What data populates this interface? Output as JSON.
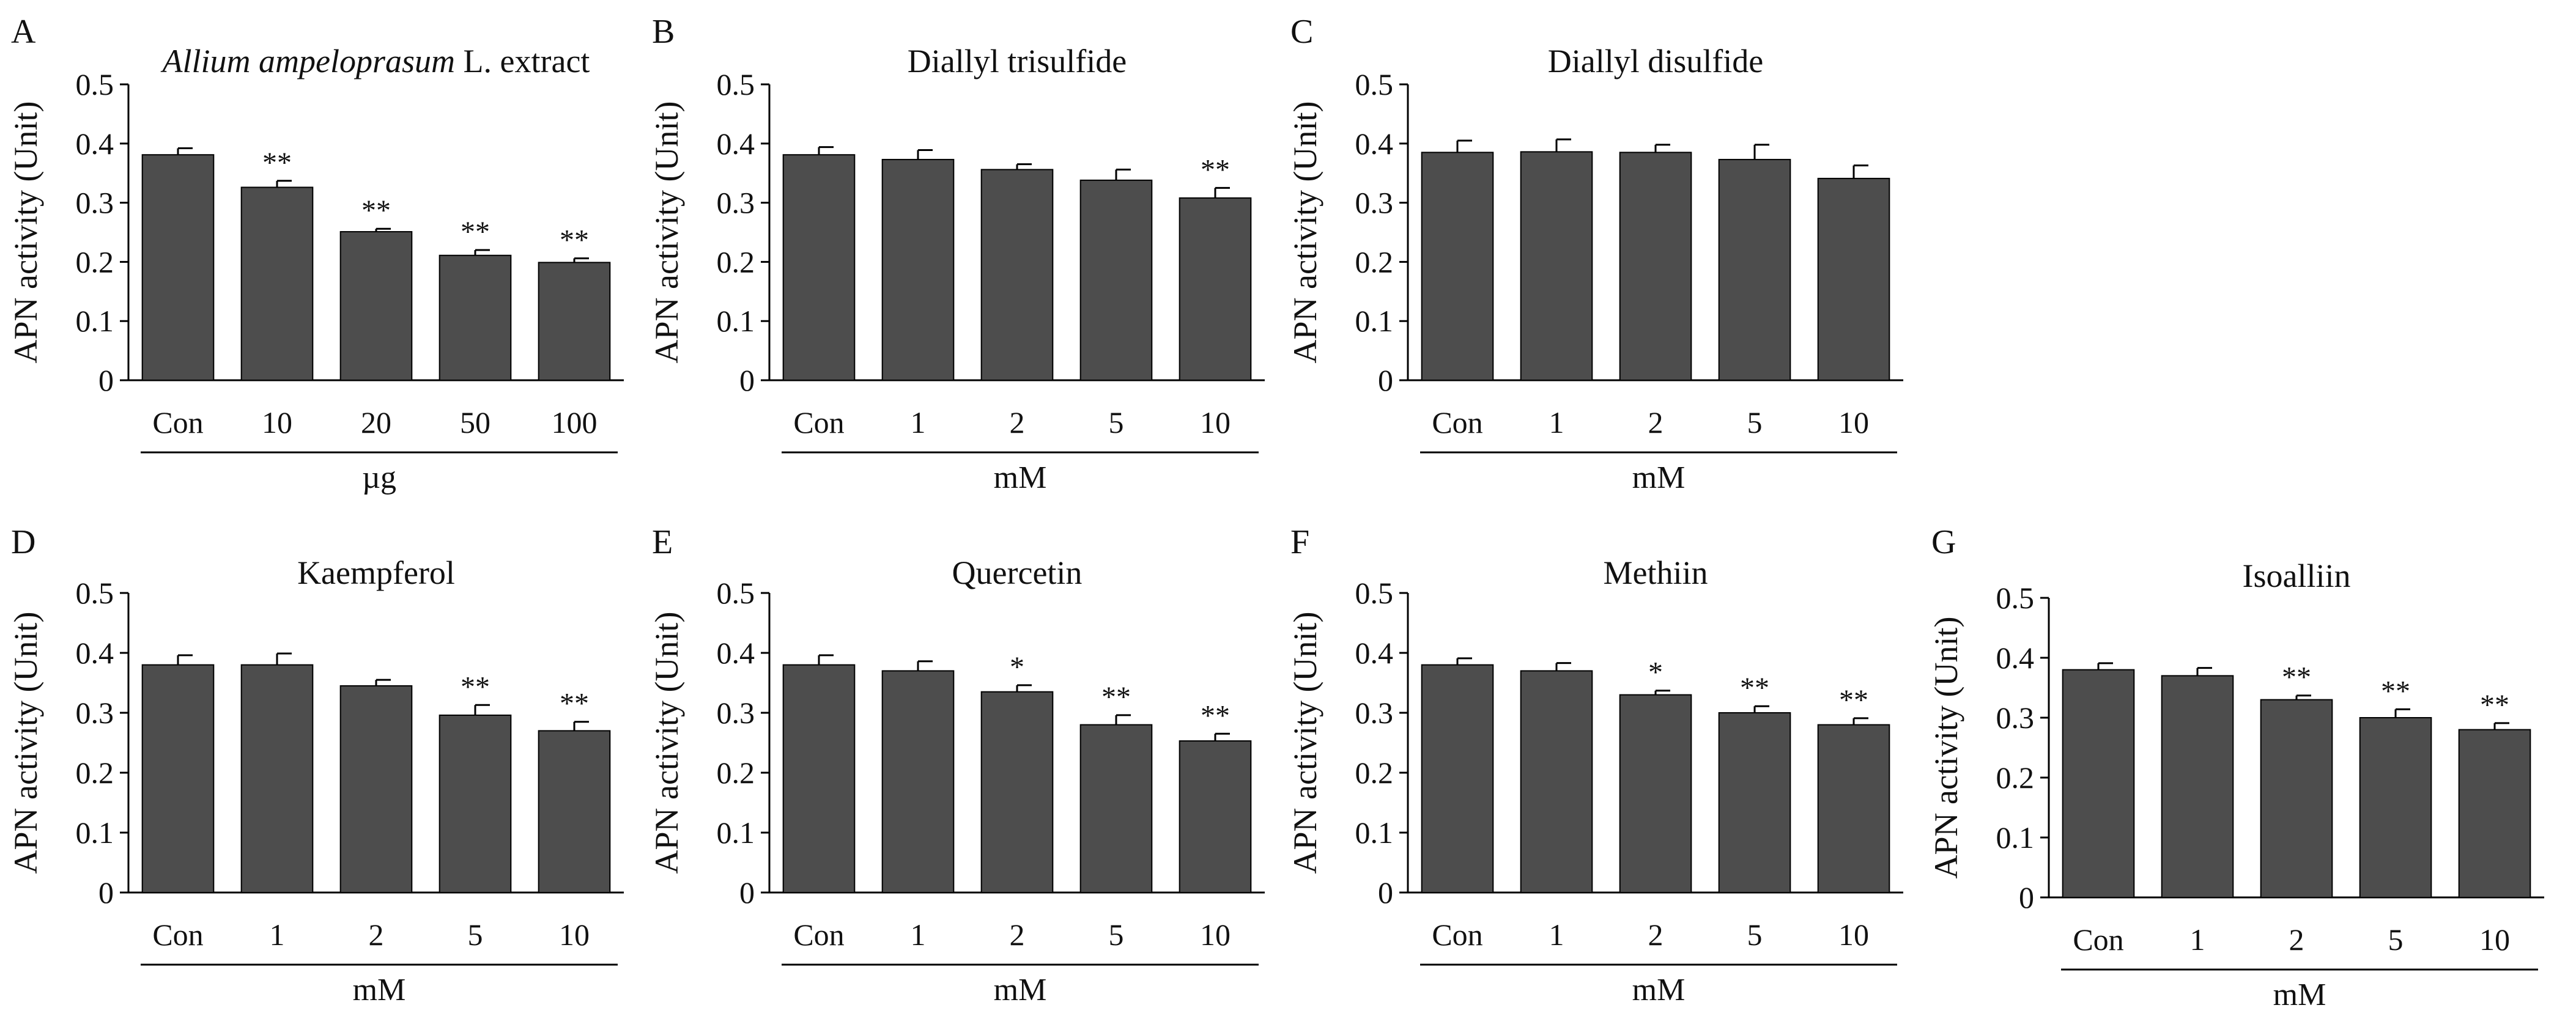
{
  "figure": {
    "bar_color": "#4d4d4d",
    "bar_edge_color": "#000000",
    "axis_color": "#000000"
  },
  "chart_data": [
    {
      "panel": "A",
      "type": "bar",
      "title": "L. extract",
      "title_italic": "Allium ampeloprasum",
      "ylabel": "APN activity (Unit)",
      "xlabel": "µg",
      "ylim": [
        0,
        0.5
      ],
      "yticks": [
        "0",
        "0.1",
        "0.2",
        "0.3",
        "0.4",
        "0.5"
      ],
      "categories": [
        "Con",
        "10",
        "20",
        "50",
        "100"
      ],
      "values": [
        0.381,
        0.326,
        0.251,
        0.211,
        0.199
      ],
      "errors": [
        0.011,
        0.011,
        0.005,
        0.009,
        0.007
      ],
      "significance": [
        "",
        "**",
        "**",
        "**",
        "**"
      ]
    },
    {
      "panel": "B",
      "type": "bar",
      "title": "Diallyl trisulfide",
      "ylabel": "APN activity (Unit)",
      "xlabel": "mM",
      "ylim": [
        0,
        0.5
      ],
      "yticks": [
        "0",
        "0.1",
        "0.2",
        "0.3",
        "0.4",
        "0.5"
      ],
      "categories": [
        "Con",
        "1",
        "2",
        "5",
        "10"
      ],
      "values": [
        0.381,
        0.373,
        0.356,
        0.338,
        0.308
      ],
      "errors": [
        0.013,
        0.016,
        0.009,
        0.018,
        0.017
      ],
      "significance": [
        "",
        "",
        "",
        "",
        "**"
      ]
    },
    {
      "panel": "C",
      "type": "bar",
      "title": "Diallyl disulfide",
      "ylabel": "APN activity (Unit)",
      "xlabel": "mM",
      "ylim": [
        0,
        0.5
      ],
      "yticks": [
        "0",
        "0.1",
        "0.2",
        "0.3",
        "0.4",
        "0.5"
      ],
      "categories": [
        "Con",
        "1",
        "2",
        "5",
        "10"
      ],
      "values": [
        0.385,
        0.386,
        0.385,
        0.373,
        0.341
      ],
      "errors": [
        0.02,
        0.021,
        0.013,
        0.025,
        0.022
      ],
      "significance": [
        "",
        "",
        "",
        "",
        ""
      ]
    },
    {
      "panel": "D",
      "type": "bar",
      "title": "Kaempferol",
      "ylabel": "APN activity (Unit)",
      "xlabel": "mM",
      "ylim": [
        0,
        0.5
      ],
      "yticks": [
        "0",
        "0.1",
        "0.2",
        "0.3",
        "0.4",
        "0.5"
      ],
      "categories": [
        "Con",
        "1",
        "2",
        "5",
        "10"
      ],
      "values": [
        0.38,
        0.38,
        0.345,
        0.296,
        0.27
      ],
      "errors": [
        0.016,
        0.019,
        0.01,
        0.017,
        0.015
      ],
      "significance": [
        "",
        "",
        "",
        "**",
        "**"
      ]
    },
    {
      "panel": "E",
      "type": "bar",
      "title": "Quercetin",
      "ylabel": "APN activity (Unit)",
      "xlabel": "mM",
      "ylim": [
        0,
        0.5
      ],
      "yticks": [
        "0",
        "0.1",
        "0.2",
        "0.3",
        "0.4",
        "0.5"
      ],
      "categories": [
        "Con",
        "1",
        "2",
        "5",
        "10"
      ],
      "values": [
        0.38,
        0.37,
        0.335,
        0.28,
        0.253
      ],
      "errors": [
        0.016,
        0.016,
        0.011,
        0.016,
        0.012
      ],
      "significance": [
        "",
        "",
        "*",
        "**",
        "**"
      ]
    },
    {
      "panel": "F",
      "type": "bar",
      "title": "Methiin",
      "ylabel": "APN activity (Unit)",
      "xlabel": "mM",
      "ylim": [
        0,
        0.5
      ],
      "yticks": [
        "0",
        "0.1",
        "0.2",
        "0.3",
        "0.4",
        "0.5"
      ],
      "categories": [
        "Con",
        "1",
        "2",
        "5",
        "10"
      ],
      "values": [
        0.38,
        0.37,
        0.33,
        0.3,
        0.28
      ],
      "errors": [
        0.011,
        0.013,
        0.007,
        0.011,
        0.011
      ],
      "significance": [
        "",
        "",
        "*",
        "**",
        "**"
      ]
    },
    {
      "panel": "G",
      "type": "bar",
      "title": "Isoalliin",
      "ylabel": "APN activity (Unit)",
      "xlabel": "mM",
      "ylim": [
        0,
        0.5
      ],
      "yticks": [
        "0",
        "0.1",
        "0.2",
        "0.3",
        "0.4",
        "0.5"
      ],
      "categories": [
        "Con",
        "1",
        "2",
        "5",
        "10"
      ],
      "values": [
        0.38,
        0.37,
        0.33,
        0.3,
        0.28
      ],
      "errors": [
        0.011,
        0.013,
        0.007,
        0.014,
        0.011
      ],
      "significance": [
        "",
        "",
        "**",
        "**",
        "**"
      ]
    }
  ]
}
